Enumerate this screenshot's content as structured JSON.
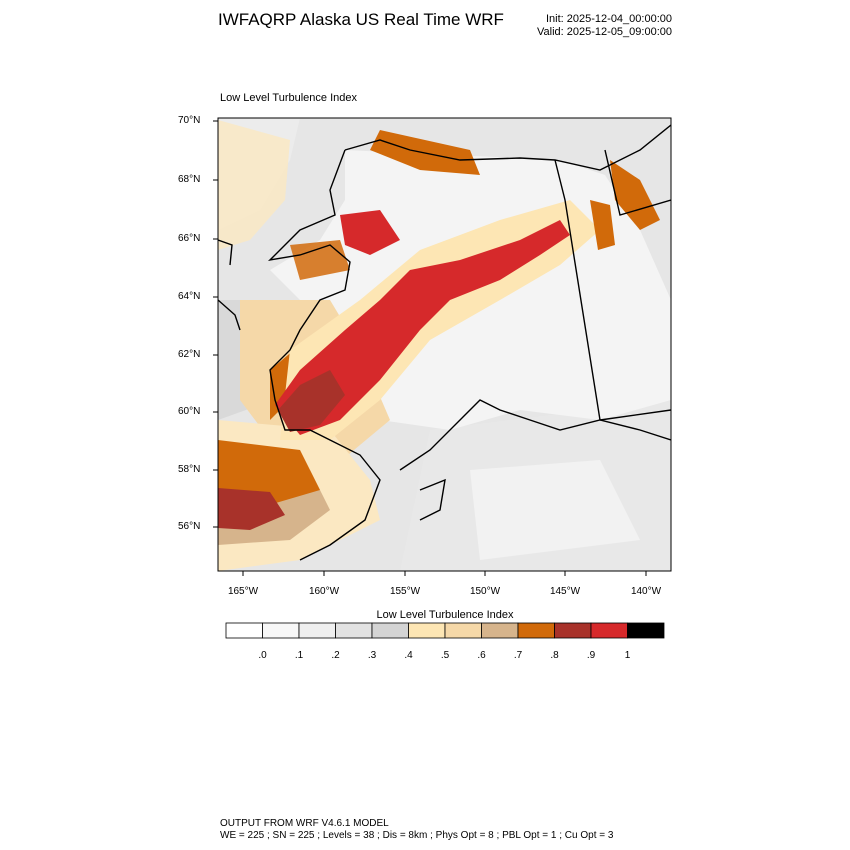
{
  "header": {
    "title": "IWFAQRP Alaska US Real Time WRF",
    "init": "Init: 2025-12-04_00:00:00",
    "valid": "Valid: 2025-12-05_09:00:00"
  },
  "map": {
    "title": "Low Level Turbulence Index",
    "lat_labels": [
      "70°N",
      "68°N",
      "66°N",
      "64°N",
      "62°N",
      "60°N",
      "58°N",
      "56°N"
    ],
    "lon_labels": [
      "165°W",
      "160°W",
      "155°W",
      "150°W",
      "145°W",
      "140°W"
    ]
  },
  "colorbar": {
    "title": "Low Level Turbulence Index",
    "labels": [
      ".0",
      ".1",
      ".2",
      ".3",
      ".4",
      ".5",
      ".6",
      ".7",
      ".8",
      ".9",
      "1"
    ],
    "colors": [
      "#ffffff",
      "#f7f7f7",
      "#efefef",
      "#e2e2e2",
      "#d4d4d4",
      "#fde6b4",
      "#f5d8a8",
      "#d6b48c",
      "#d16a0a",
      "#a8322a",
      "#d6292b",
      "#000000"
    ]
  },
  "footer": {
    "line1": "OUTPUT FROM WRF V4.6.1 MODEL",
    "line2": "WE = 225 ; SN = 225 ; Levels = 38 ; Dis = 8km ; Phys Opt = 8 ; PBL Opt = 1 ; Cu Opt = 3"
  }
}
